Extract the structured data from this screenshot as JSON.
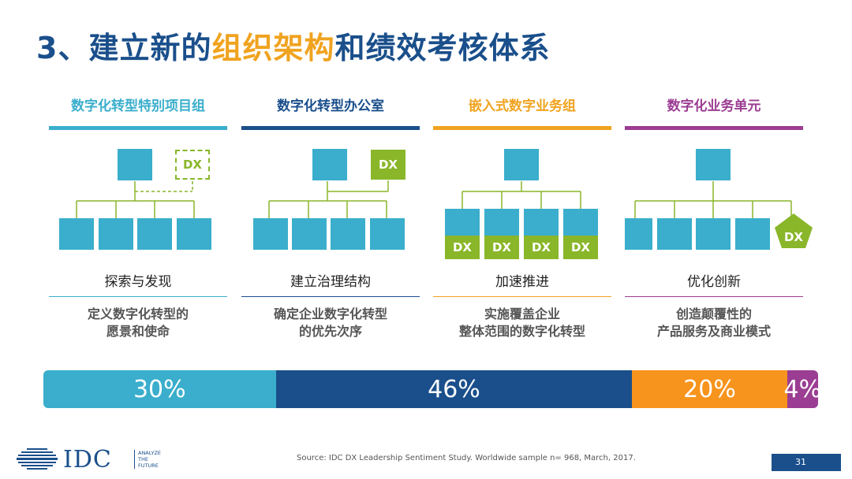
{
  "title": {
    "prefix": "3、建立新的",
    "highlight": "组织架构",
    "suffix": "和绩效考核体系"
  },
  "columns": [
    {
      "heading": "数字化转型特别项目组",
      "color": "#3aaecc",
      "dx_label": "DX",
      "caption": "探索与发现",
      "desc_lines": [
        "定义数字化转型的",
        "愿景和使命"
      ]
    },
    {
      "heading": "数字化转型办公室",
      "color": "#1a4f8b",
      "dx_label": "DX",
      "caption": "建立治理结构",
      "desc_lines": [
        "确定企业数字化转型",
        "的优先次序"
      ]
    },
    {
      "heading": "嵌入式数字业务组",
      "color": "#f0a31f",
      "dx_labels": [
        "DX",
        "DX",
        "DX",
        "DX"
      ],
      "caption": "加速推进",
      "desc_lines": [
        "实施覆盖企业",
        "整体范围的数字化转型"
      ]
    },
    {
      "heading": "数字化业务单元",
      "color": "#9b3d92",
      "dx_label": "DX",
      "caption": "优化创新",
      "desc_lines": [
        "创造颠覆性的",
        "产品服务及商业模式"
      ]
    }
  ],
  "colors": {
    "box": "#3aaecc",
    "dx": "#8ab62a",
    "connector": "#8ab62a"
  },
  "distribution": [
    {
      "label": "30%",
      "value": 30,
      "color": "#3aaecc"
    },
    {
      "label": "46%",
      "value": 46,
      "color": "#1a4f8b"
    },
    {
      "label": "20%",
      "value": 20,
      "color": "#f7941d"
    },
    {
      "label": "4%",
      "value": 4,
      "color": "#9b3d92"
    }
  ],
  "footer": {
    "logo_text": "IDC",
    "logo_tagline": [
      "ANALYZE",
      "THE",
      "FUTURE"
    ],
    "source": "Source: IDC DX Leadership Sentiment Study. Worldwide sample n= 968, March, 2017.",
    "page": "31"
  }
}
